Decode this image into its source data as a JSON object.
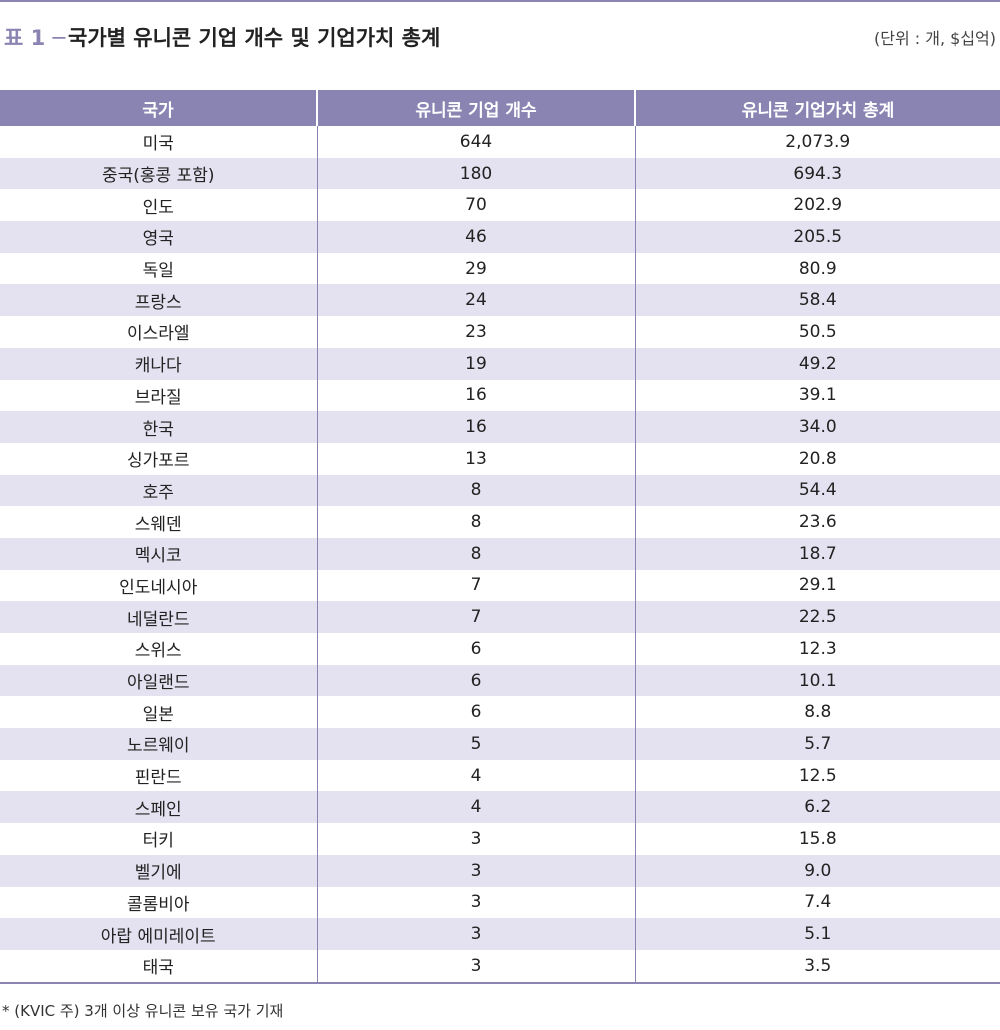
{
  "title": {
    "prefix": "표 1 ─",
    "text": "국가별 유니콘 기업 개수 및 기업가치 총계",
    "unit": "(단위 : 개, $십억)"
  },
  "table": {
    "headers": [
      "국가",
      "유니콘 기업 개수",
      "유니콘 기업가치 총계"
    ],
    "rows": [
      [
        "미국",
        "644",
        "2,073.9"
      ],
      [
        "중국(홍콩 포함)",
        "180",
        "694.3"
      ],
      [
        "인도",
        "70",
        "202.9"
      ],
      [
        "영국",
        "46",
        "205.5"
      ],
      [
        "독일",
        "29",
        "80.9"
      ],
      [
        "프랑스",
        "24",
        "58.4"
      ],
      [
        "이스라엘",
        "23",
        "50.5"
      ],
      [
        "캐나다",
        "19",
        "49.2"
      ],
      [
        "브라질",
        "16",
        "39.1"
      ],
      [
        "한국",
        "16",
        "34.0"
      ],
      [
        "싱가포르",
        "13",
        "20.8"
      ],
      [
        "호주",
        "8",
        "54.4"
      ],
      [
        "스웨덴",
        "8",
        "23.6"
      ],
      [
        "멕시코",
        "8",
        "18.7"
      ],
      [
        "인도네시아",
        "7",
        "29.1"
      ],
      [
        "네덜란드",
        "7",
        "22.5"
      ],
      [
        "스위스",
        "6",
        "12.3"
      ],
      [
        "아일랜드",
        "6",
        "10.1"
      ],
      [
        "일본",
        "6",
        "8.8"
      ],
      [
        "노르웨이",
        "5",
        "5.7"
      ],
      [
        "핀란드",
        "4",
        "12.5"
      ],
      [
        "스페인",
        "4",
        "6.2"
      ],
      [
        "터키",
        "3",
        "15.8"
      ],
      [
        "벨기에",
        "3",
        "9.0"
      ],
      [
        "콜롬비아",
        "3",
        "7.4"
      ],
      [
        "아랍 에미레이트",
        "3",
        "5.1"
      ],
      [
        "태국",
        "3",
        "3.5"
      ]
    ]
  },
  "footnote": "* (KVIC 주) 3개 이상 유니콘 보유 국가 기재",
  "colors": {
    "accent": "#8a84b3",
    "row_stripe": "#e4e2f0"
  }
}
